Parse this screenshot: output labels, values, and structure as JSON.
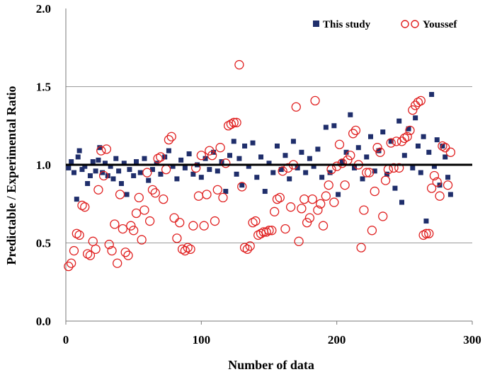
{
  "chart_data": {
    "type": "scatter",
    "title": "",
    "xlabel": "Number of data",
    "ylabel": "Predictable / Experimental Ratio",
    "xlim": [
      0,
      300
    ],
    "ylim": [
      0.0,
      2.0
    ],
    "x_ticks": [
      "0",
      "100",
      "200",
      "300"
    ],
    "y_ticks": [
      "0.0",
      "0.5",
      "1.0",
      "1.5",
      "2.0"
    ],
    "reference_line": {
      "y": 1.0,
      "color": "#000000"
    },
    "legend": {
      "position": "top-right"
    },
    "series": [
      {
        "name": "This study",
        "marker": "square",
        "color": "#1f2e6b",
        "points": [
          [
            2,
            0.98
          ],
          [
            4,
            1.02
          ],
          [
            6,
            0.95
          ],
          [
            8,
            0.78
          ],
          [
            9,
            1.05
          ],
          [
            10,
            1.09
          ],
          [
            12,
            0.97
          ],
          [
            14,
            0.99
          ],
          [
            16,
            0.88
          ],
          [
            18,
            0.93
          ],
          [
            20,
            1.02
          ],
          [
            22,
            0.96
          ],
          [
            24,
            1.03
          ],
          [
            25,
            1.11
          ],
          [
            27,
            0.95
          ],
          [
            29,
            1.01
          ],
          [
            31,
            0.93
          ],
          [
            33,
            0.99
          ],
          [
            35,
            0.91
          ],
          [
            37,
            1.04
          ],
          [
            39,
            0.96
          ],
          [
            41,
            0.88
          ],
          [
            43,
            1.01
          ],
          [
            45,
            0.81
          ],
          [
            47,
            0.97
          ],
          [
            50,
            0.93
          ],
          [
            52,
            1.02
          ],
          [
            55,
            0.95
          ],
          [
            58,
            1.04
          ],
          [
            61,
            0.9
          ],
          [
            64,
            0.97
          ],
          [
            67,
            1.01
          ],
          [
            70,
            0.94
          ],
          [
            73,
            1.05
          ],
          [
            76,
            1.09
          ],
          [
            79,
            0.99
          ],
          [
            82,
            0.91
          ],
          [
            85,
            1.03
          ],
          [
            88,
            0.98
          ],
          [
            91,
            1.07
          ],
          [
            94,
            0.94
          ],
          [
            97,
            1.0
          ],
          [
            100,
            0.92
          ],
          [
            103,
            1.04
          ],
          [
            106,
            0.97
          ],
          [
            109,
            1.08
          ],
          [
            112,
            0.96
          ],
          [
            115,
            1.02
          ],
          [
            118,
            0.83
          ],
          [
            121,
            1.06
          ],
          [
            124,
            1.15
          ],
          [
            126,
            0.94
          ],
          [
            128,
            1.04
          ],
          [
            130,
            0.87
          ],
          [
            132,
            1.12
          ],
          [
            135,
            0.99
          ],
          [
            138,
            1.14
          ],
          [
            141,
            0.92
          ],
          [
            144,
            1.05
          ],
          [
            147,
            0.83
          ],
          [
            150,
            1.01
          ],
          [
            153,
            0.95
          ],
          [
            156,
            1.12
          ],
          [
            159,
            0.97
          ],
          [
            162,
            1.06
          ],
          [
            165,
            0.91
          ],
          [
            168,
            1.15
          ],
          [
            171,
            0.98
          ],
          [
            174,
            1.08
          ],
          [
            177,
            0.95
          ],
          [
            180,
            1.04
          ],
          [
            183,
            0.99
          ],
          [
            186,
            1.1
          ],
          [
            189,
            0.92
          ],
          [
            192,
            1.24
          ],
          [
            195,
            0.95
          ],
          [
            198,
            1.25
          ],
          [
            201,
            0.81
          ],
          [
            204,
            1.02
          ],
          [
            207,
            1.08
          ],
          [
            210,
            1.32
          ],
          [
            213,
            0.98
          ],
          [
            216,
            1.11
          ],
          [
            219,
            0.91
          ],
          [
            222,
            1.05
          ],
          [
            225,
            1.18
          ],
          [
            228,
            0.96
          ],
          [
            231,
            1.09
          ],
          [
            234,
            1.21
          ],
          [
            237,
            0.94
          ],
          [
            240,
            1.15
          ],
          [
            243,
            0.85
          ],
          [
            246,
            1.28
          ],
          [
            248,
            0.76
          ],
          [
            250,
            1.06
          ],
          [
            253,
            1.23
          ],
          [
            256,
            0.98
          ],
          [
            258,
            1.3
          ],
          [
            260,
            1.12
          ],
          [
            262,
            0.95
          ],
          [
            264,
            1.18
          ],
          [
            266,
            0.64
          ],
          [
            268,
            1.08
          ],
          [
            270,
            1.45
          ],
          [
            272,
            0.99
          ],
          [
            274,
            1.16
          ],
          [
            276,
            0.87
          ],
          [
            278,
            1.12
          ],
          [
            280,
            1.05
          ],
          [
            282,
            0.92
          ],
          [
            284,
            0.81
          ]
        ]
      },
      {
        "name": "Youssef",
        "marker": "open-circle",
        "color": "#e02020",
        "points": [
          [
            2,
            0.35
          ],
          [
            4,
            0.37
          ],
          [
            6,
            0.45
          ],
          [
            8,
            0.56
          ],
          [
            10,
            0.55
          ],
          [
            12,
            0.74
          ],
          [
            14,
            0.73
          ],
          [
            16,
            0.43
          ],
          [
            18,
            0.42
          ],
          [
            20,
            0.51
          ],
          [
            22,
            0.46
          ],
          [
            24,
            0.84
          ],
          [
            26,
            1.09
          ],
          [
            28,
            0.93
          ],
          [
            30,
            1.1
          ],
          [
            32,
            0.49
          ],
          [
            34,
            0.45
          ],
          [
            36,
            0.62
          ],
          [
            38,
            0.37
          ],
          [
            40,
            0.81
          ],
          [
            42,
            0.59
          ],
          [
            44,
            0.44
          ],
          [
            46,
            0.42
          ],
          [
            48,
            0.61
          ],
          [
            50,
            0.58
          ],
          [
            52,
            0.69
          ],
          [
            54,
            0.79
          ],
          [
            56,
            0.52
          ],
          [
            58,
            0.71
          ],
          [
            60,
            0.95
          ],
          [
            62,
            0.64
          ],
          [
            64,
            0.84
          ],
          [
            66,
            0.82
          ],
          [
            68,
            1.04
          ],
          [
            70,
            1.05
          ],
          [
            72,
            0.78
          ],
          [
            74,
            0.97
          ],
          [
            76,
            1.16
          ],
          [
            78,
            1.18
          ],
          [
            80,
            0.66
          ],
          [
            82,
            0.53
          ],
          [
            84,
            0.63
          ],
          [
            86,
            0.46
          ],
          [
            88,
            0.45
          ],
          [
            90,
            0.47
          ],
          [
            92,
            0.46
          ],
          [
            94,
            0.61
          ],
          [
            96,
            0.98
          ],
          [
            98,
            0.8
          ],
          [
            100,
            1.06
          ],
          [
            102,
            0.61
          ],
          [
            104,
            0.81
          ],
          [
            106,
            1.09
          ],
          [
            108,
            1.06
          ],
          [
            110,
            0.64
          ],
          [
            112,
            0.84
          ],
          [
            114,
            1.11
          ],
          [
            116,
            0.79
          ],
          [
            118,
            1.01
          ],
          [
            120,
            1.25
          ],
          [
            122,
            1.26
          ],
          [
            124,
            1.27
          ],
          [
            126,
            1.27
          ],
          [
            128,
            1.64
          ],
          [
            130,
            0.86
          ],
          [
            132,
            0.47
          ],
          [
            134,
            0.46
          ],
          [
            136,
            0.48
          ],
          [
            138,
            0.63
          ],
          [
            140,
            0.64
          ],
          [
            142,
            0.55
          ],
          [
            144,
            0.56
          ],
          [
            146,
            0.57
          ],
          [
            148,
            0.57
          ],
          [
            150,
            0.58
          ],
          [
            152,
            0.58
          ],
          [
            154,
            0.7
          ],
          [
            156,
            0.78
          ],
          [
            158,
            0.79
          ],
          [
            160,
            0.96
          ],
          [
            162,
            0.59
          ],
          [
            164,
            0.98
          ],
          [
            166,
            0.73
          ],
          [
            168,
            1.0
          ],
          [
            170,
            1.37
          ],
          [
            172,
            0.51
          ],
          [
            174,
            0.72
          ],
          [
            176,
            0.78
          ],
          [
            178,
            0.63
          ],
          [
            180,
            0.66
          ],
          [
            182,
            0.78
          ],
          [
            184,
            1.41
          ],
          [
            186,
            0.71
          ],
          [
            188,
            0.75
          ],
          [
            190,
            0.61
          ],
          [
            192,
            0.8
          ],
          [
            194,
            0.87
          ],
          [
            196,
            0.97
          ],
          [
            198,
            0.76
          ],
          [
            200,
            0.99
          ],
          [
            202,
            1.13
          ],
          [
            204,
            1.01
          ],
          [
            206,
            0.87
          ],
          [
            208,
            1.03
          ],
          [
            210,
            1.06
          ],
          [
            212,
            1.2
          ],
          [
            214,
            1.22
          ],
          [
            216,
            1.0
          ],
          [
            218,
            0.47
          ],
          [
            220,
            0.71
          ],
          [
            222,
            0.95
          ],
          [
            224,
            0.95
          ],
          [
            226,
            0.58
          ],
          [
            228,
            0.83
          ],
          [
            230,
            1.11
          ],
          [
            232,
            1.08
          ],
          [
            234,
            0.67
          ],
          [
            236,
            0.9
          ],
          [
            238,
            0.97
          ],
          [
            240,
            1.14
          ],
          [
            242,
            0.98
          ],
          [
            244,
            1.15
          ],
          [
            246,
            0.98
          ],
          [
            248,
            1.15
          ],
          [
            250,
            1.17
          ],
          [
            252,
            1.18
          ],
          [
            254,
            1.22
          ],
          [
            256,
            1.35
          ],
          [
            258,
            1.38
          ],
          [
            260,
            1.4
          ],
          [
            262,
            1.41
          ],
          [
            264,
            0.55
          ],
          [
            266,
            0.56
          ],
          [
            268,
            0.56
          ],
          [
            270,
            0.85
          ],
          [
            272,
            0.93
          ],
          [
            274,
            0.89
          ],
          [
            276,
            0.8
          ],
          [
            278,
            1.12
          ],
          [
            280,
            1.11
          ],
          [
            282,
            0.87
          ],
          [
            284,
            1.08
          ]
        ]
      }
    ]
  }
}
